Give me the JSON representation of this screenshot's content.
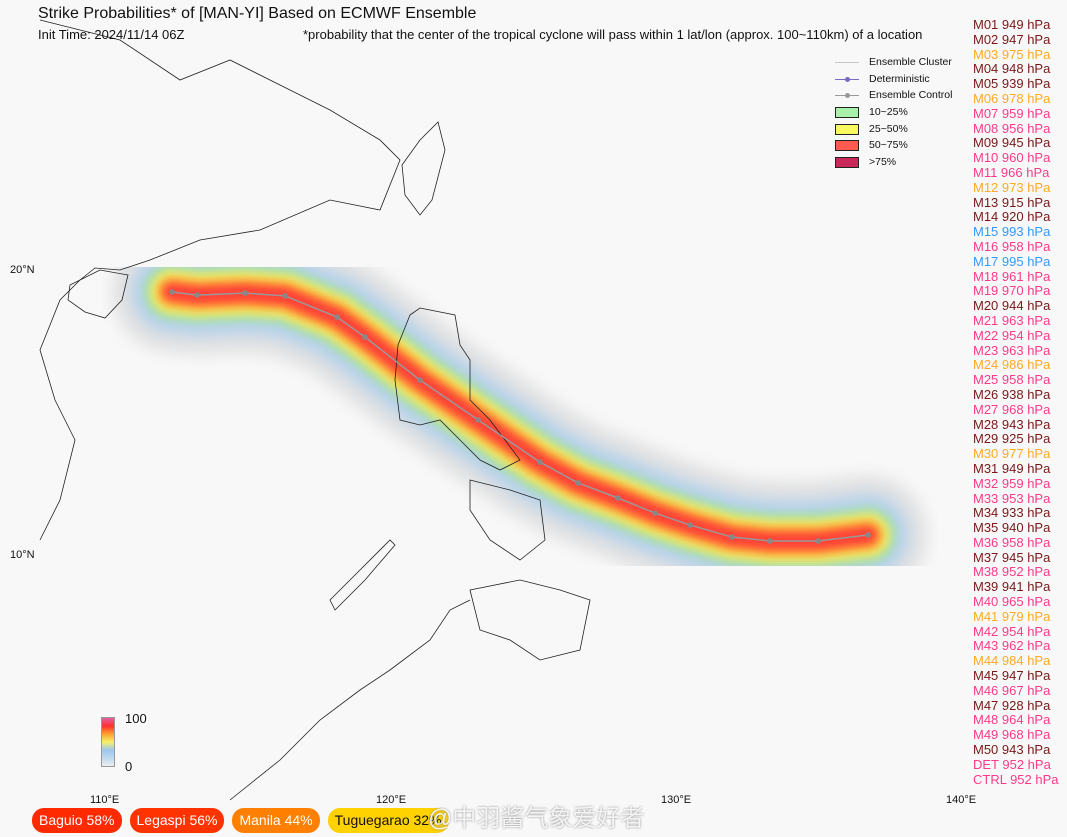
{
  "header": {
    "title": "Strike Probabilities* of [MAN-YI] Based on ECMWF Ensemble",
    "init_time": "Init Time: 2024/11/14 06Z",
    "footnote": "*probability that the center of the tropical cyclone will pass within 1 lat/lon (approx. 100~110km) of a location"
  },
  "legend": {
    "items": [
      {
        "label": "Ensemble Cluster",
        "kind": "line",
        "color": "#c8c8c8"
      },
      {
        "label": "Deterministic",
        "kind": "line-dot",
        "color": "#7b68c8"
      },
      {
        "label": "Ensemble Control",
        "kind": "line-dot",
        "color": "#999999"
      },
      {
        "label": "10~25%",
        "kind": "box",
        "color": "#aaf0aa"
      },
      {
        "label": "25~50%",
        "kind": "box",
        "color": "#f8f860"
      },
      {
        "label": "50~75%",
        "kind": "box",
        "color": "#ff5a50"
      },
      {
        "label": ">75%",
        "kind": "box",
        "color": "#c8285a"
      }
    ]
  },
  "axes": {
    "lon_ticks": [
      "110°E",
      "120°E",
      "130°E",
      "140°E"
    ],
    "lat_ticks": [
      "20°N",
      "10°N"
    ]
  },
  "colorbar": {
    "max": "100",
    "min": "0"
  },
  "control_track": [
    [
      112.35,
      19.23
    ],
    [
      113.23,
      19.12
    ],
    [
      114.91,
      19.19
    ],
    [
      116.32,
      19.09
    ],
    [
      118.14,
      18.35
    ],
    [
      119.12,
      17.65
    ],
    [
      121.05,
      16.14
    ],
    [
      123.09,
      14.74
    ],
    [
      125.26,
      13.26
    ],
    [
      126.6,
      12.53
    ],
    [
      128.0,
      12.0
    ],
    [
      129.3,
      11.47
    ],
    [
      130.53,
      11.05
    ],
    [
      132.0,
      10.63
    ],
    [
      133.33,
      10.49
    ],
    [
      135.02,
      10.49
    ],
    [
      136.77,
      10.7
    ]
  ],
  "members": [
    {
      "label": "M01 949 hPa",
      "color": "#7a1818"
    },
    {
      "label": "M02 947 hPa",
      "color": "#7a1818"
    },
    {
      "label": "M03 975 hPa",
      "color": "#ffaa22"
    },
    {
      "label": "M04 948 hPa",
      "color": "#7a1818"
    },
    {
      "label": "M05 939 hPa",
      "color": "#7a1818"
    },
    {
      "label": "M06 978 hPa",
      "color": "#ffaa22"
    },
    {
      "label": "M07 959 hPa",
      "color": "#ff3a88"
    },
    {
      "label": "M08 956 hPa",
      "color": "#ff3a88"
    },
    {
      "label": "M09 945 hPa",
      "color": "#7a1818"
    },
    {
      "label": "M10 960 hPa",
      "color": "#ff3a88"
    },
    {
      "label": "M11 966 hPa",
      "color": "#ff3a88"
    },
    {
      "label": "M12 973 hPa",
      "color": "#ffaa22"
    },
    {
      "label": "M13 915 hPa",
      "color": "#7a1818"
    },
    {
      "label": "M14 920 hPa",
      "color": "#7a1818"
    },
    {
      "label": "M15 993 hPa",
      "color": "#3399ff"
    },
    {
      "label": "M16 958 hPa",
      "color": "#ff3a88"
    },
    {
      "label": "M17 995 hPa",
      "color": "#3399ff"
    },
    {
      "label": "M18 961 hPa",
      "color": "#ff3a88"
    },
    {
      "label": "M19 970 hPa",
      "color": "#ff3a88"
    },
    {
      "label": "M20 944 hPa",
      "color": "#7a1818"
    },
    {
      "label": "M21 963 hPa",
      "color": "#ff3a88"
    },
    {
      "label": "M22 954 hPa",
      "color": "#ff3a88"
    },
    {
      "label": "M23 963 hPa",
      "color": "#ff3a88"
    },
    {
      "label": "M24 986 hPa",
      "color": "#ffaa22"
    },
    {
      "label": "M25 958 hPa",
      "color": "#ff3a88"
    },
    {
      "label": "M26 938 hPa",
      "color": "#7a1818"
    },
    {
      "label": "M27 968 hPa",
      "color": "#ff3a88"
    },
    {
      "label": "M28 943 hPa",
      "color": "#7a1818"
    },
    {
      "label": "M29 925 hPa",
      "color": "#7a1818"
    },
    {
      "label": "M30 977 hPa",
      "color": "#ffaa22"
    },
    {
      "label": "M31 949 hPa",
      "color": "#7a1818"
    },
    {
      "label": "M32 959 hPa",
      "color": "#ff3a88"
    },
    {
      "label": "M33 953 hPa",
      "color": "#ff3a88"
    },
    {
      "label": "M34 933 hPa",
      "color": "#7a1818"
    },
    {
      "label": "M35 940 hPa",
      "color": "#7a1818"
    },
    {
      "label": "M36 958 hPa",
      "color": "#ff3a88"
    },
    {
      "label": "M37 945 hPa",
      "color": "#7a1818"
    },
    {
      "label": "M38 952 hPa",
      "color": "#ff3a88"
    },
    {
      "label": "M39 941 hPa",
      "color": "#7a1818"
    },
    {
      "label": "M40 965 hPa",
      "color": "#ff3a88"
    },
    {
      "label": "M41 979 hPa",
      "color": "#ffaa22"
    },
    {
      "label": "M42 954 hPa",
      "color": "#ff3a88"
    },
    {
      "label": "M43 962 hPa",
      "color": "#ff3a88"
    },
    {
      "label": "M44 984 hPa",
      "color": "#ffaa22"
    },
    {
      "label": "M45 947 hPa",
      "color": "#7a1818"
    },
    {
      "label": "M46 967 hPa",
      "color": "#ff3a88"
    },
    {
      "label": "M47 928 hPa",
      "color": "#7a1818"
    },
    {
      "label": "M48 964 hPa",
      "color": "#ff3a88"
    },
    {
      "label": "M49 968 hPa",
      "color": "#ff3a88"
    },
    {
      "label": "M50 943 hPa",
      "color": "#7a1818"
    },
    {
      "label": "DET 952 hPa",
      "color": "#ff3a88"
    },
    {
      "label": "CTRL 952 hPa",
      "color": "#ff3a88"
    }
  ],
  "cities": [
    {
      "label": "Baguio 58%",
      "color": "#ff2a00",
      "text": "#ffffff"
    },
    {
      "label": "Legaspi 56%",
      "color": "#ff3300",
      "text": "#ffffff"
    },
    {
      "label": "Manila 44%",
      "color": "#ff8000",
      "text": "#ffffff"
    },
    {
      "label": "Tuguegarao 32%",
      "color": "#ffd200",
      "text": "#111111"
    }
  ],
  "watermark": "@中羽酱气象爱好者"
}
